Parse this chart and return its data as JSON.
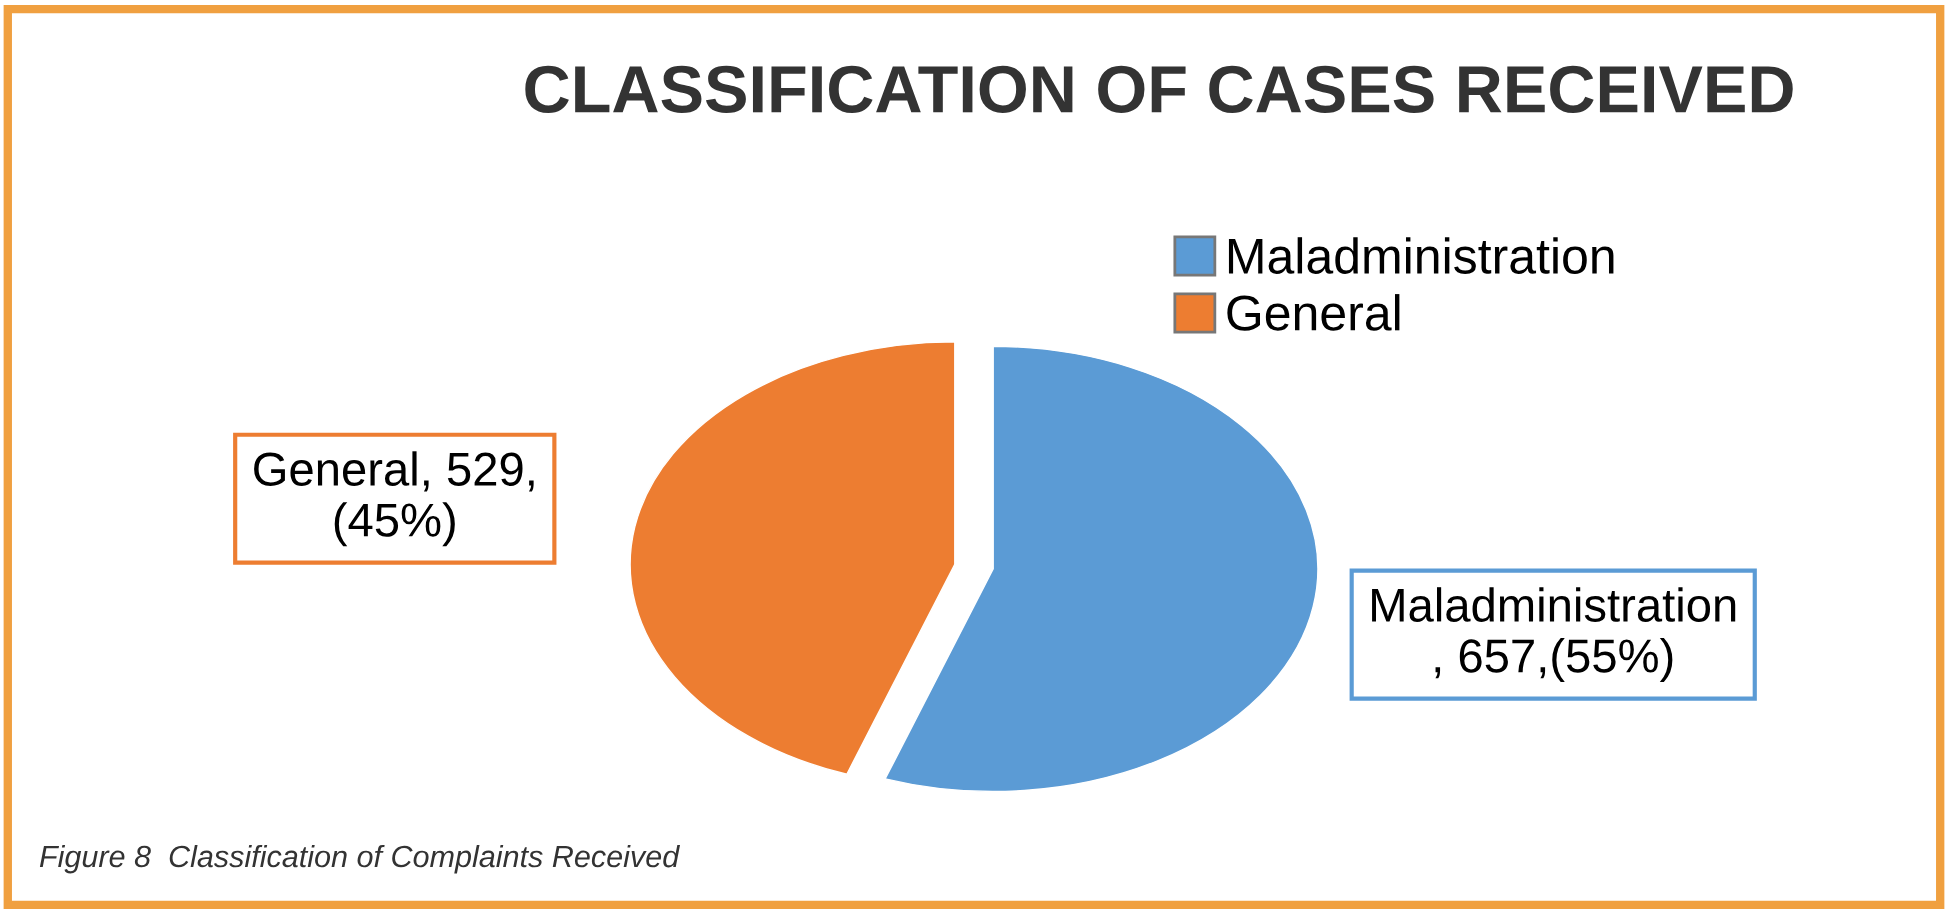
{
  "chart_data": {
    "type": "pie",
    "title": "CLASSIFICATION OF CASES RECEIVED",
    "categories": [
      "Maladministration",
      "General"
    ],
    "values": [
      657,
      529
    ],
    "colors": [
      "#5b9bd5",
      "#ed7d31"
    ],
    "value_labels": [
      "Maladministration\n, 657,(55%)",
      "General, 529,\n(45%)"
    ],
    "legend": "top right",
    "annotations": [
      "Figure 8  Classification of Complaints Received"
    ]
  }
}
